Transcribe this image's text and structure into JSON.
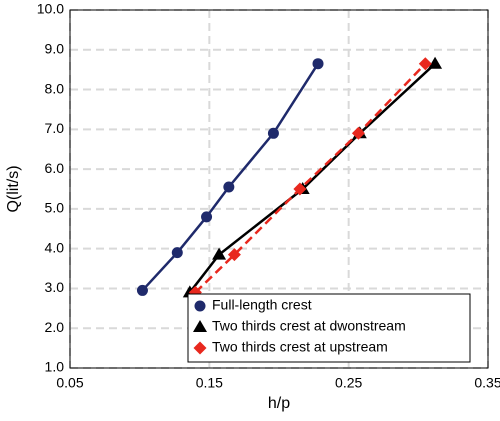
{
  "chart_data": {
    "type": "line",
    "xlabel": "h/p",
    "ylabel": "Q(lit/s)",
    "xlim": [
      0.05,
      0.35
    ],
    "xticks": [
      0.05,
      0.15,
      0.25,
      0.35
    ],
    "ylim": [
      1.0,
      10.0
    ],
    "yticks": [
      {
        "value": 1,
        "label": "1.0"
      },
      {
        "value": 2,
        "label": "2.0"
      },
      {
        "value": 3,
        "label": "3.0"
      },
      {
        "value": 4,
        "label": "4.0"
      },
      {
        "value": 5,
        "label": "5.0"
      },
      {
        "value": 6,
        "label": "6.0"
      },
      {
        "value": 7,
        "label": "7.0"
      },
      {
        "value": 8,
        "label": "8.0"
      },
      {
        "value": 9,
        "label": "9.0"
      },
      {
        "value": 10,
        "label": "10.0"
      }
    ],
    "grid": true,
    "legend": "lower right",
    "series": [
      {
        "name": "Full-length crest",
        "color": "#1f2a6b",
        "marker": "circle",
        "line": "solid",
        "x": [
          0.102,
          0.127,
          0.148,
          0.164,
          0.196,
          0.228
        ],
        "values": [
          2.95,
          3.9,
          4.8,
          5.55,
          6.9,
          8.65
        ]
      },
      {
        "name": "Two thirds crest at dwonstream",
        "color": "#000000",
        "marker": "triangle",
        "line": "solid",
        "x": [
          0.136,
          0.157,
          0.217,
          0.258,
          0.312
        ],
        "values": [
          2.9,
          3.85,
          5.5,
          6.9,
          8.65
        ]
      },
      {
        "name": "Two thirds crest at upstream",
        "color": "#e8281e",
        "marker": "diamond",
        "line": "dashed",
        "x": [
          0.14,
          0.168,
          0.215,
          0.257,
          0.305
        ],
        "values": [
          2.9,
          3.85,
          5.5,
          6.9,
          8.65
        ]
      }
    ]
  }
}
